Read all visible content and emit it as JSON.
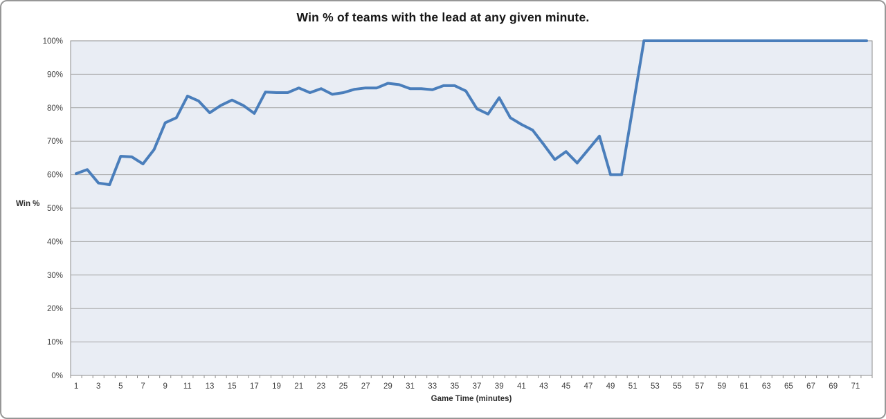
{
  "chart_data": {
    "type": "line",
    "title": "Win % of teams with the lead at any given minute.",
    "xlabel": "Game Time (minutes)",
    "ylabel": "Win %",
    "x": [
      1,
      2,
      3,
      4,
      5,
      6,
      7,
      8,
      9,
      10,
      11,
      12,
      13,
      14,
      15,
      16,
      17,
      18,
      19,
      20,
      21,
      22,
      23,
      24,
      25,
      26,
      27,
      28,
      29,
      30,
      31,
      32,
      33,
      34,
      35,
      36,
      37,
      38,
      39,
      40,
      41,
      42,
      43,
      44,
      45,
      46,
      47,
      48,
      49,
      50,
      51,
      52,
      53,
      54,
      55,
      56,
      57,
      58,
      59,
      60,
      61,
      62,
      63,
      64,
      65,
      66,
      67,
      68,
      69,
      70,
      71,
      72
    ],
    "values": [
      60.3,
      61.5,
      57.5,
      57,
      65.5,
      65.3,
      63.2,
      67.5,
      75.5,
      77,
      83.5,
      82,
      78.5,
      80.7,
      82.3,
      80.7,
      78.3,
      84.7,
      84.5,
      84.5,
      85.9,
      84.5,
      85.7,
      84,
      84.5,
      85.5,
      85.9,
      85.9,
      87.3,
      86.9,
      85.7,
      85.7,
      85.4,
      86.6,
      86.6,
      85,
      79.7,
      78.1,
      83,
      77,
      75,
      73.3,
      69,
      64.5,
      66.9,
      63.5,
      67.5,
      71.5,
      60,
      60,
      80,
      100,
      100,
      100,
      100,
      100,
      100,
      100,
      100,
      100,
      100,
      100,
      100,
      100,
      100,
      100,
      100,
      100,
      100,
      100,
      100,
      100
    ],
    "ylim": [
      0,
      100
    ],
    "ytick_step": 10,
    "ytick_labels": [
      "0%",
      "10%",
      "20%",
      "30%",
      "40%",
      "50%",
      "60%",
      "70%",
      "80%",
      "90%",
      "100%"
    ],
    "xtick_labels": [
      1,
      3,
      5,
      7,
      9,
      11,
      13,
      15,
      17,
      19,
      21,
      23,
      25,
      27,
      29,
      31,
      33,
      35,
      37,
      39,
      41,
      43,
      45,
      47,
      49,
      51,
      53,
      55,
      57,
      59,
      61,
      63,
      65,
      67,
      69,
      71
    ],
    "grid": "horizontal",
    "legend": "none",
    "line_color": "#4a7ebb",
    "plot_bg": "#e9edf4",
    "grid_color": "#a6a6a6",
    "axis_color": "#8e8e8e",
    "tick_color": "#3f3f3f"
  }
}
